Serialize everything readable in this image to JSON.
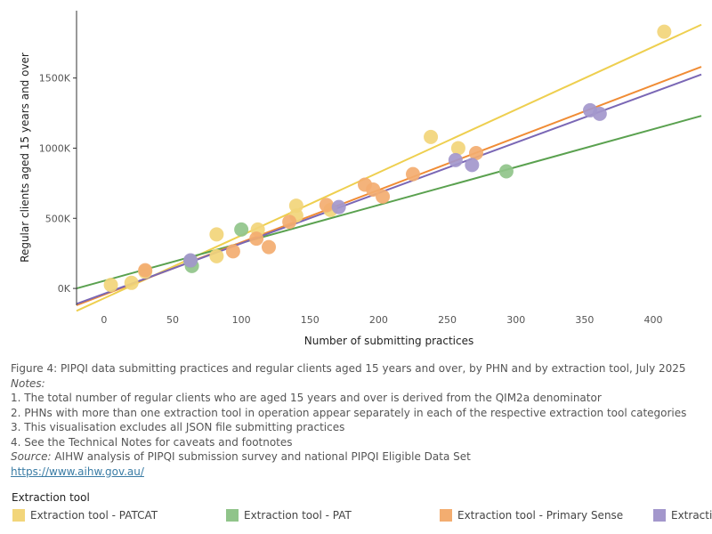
{
  "chart_data": {
    "type": "scatter",
    "xlabel": "Number of submitting practices",
    "ylabel": "Regular clients aged 15 years and over",
    "xlim": [
      -20,
      435
    ],
    "ylim": [
      -120000,
      1980000
    ],
    "x_ticks": [
      0,
      50,
      100,
      150,
      200,
      250,
      300,
      350,
      400
    ],
    "x_tick_labels": [
      "0",
      "50",
      "100",
      "150",
      "200",
      "250",
      "300",
      "350",
      "400"
    ],
    "y_ticks": [
      0,
      500000,
      1000000,
      1500000
    ],
    "y_tick_labels": [
      "0K",
      "500K",
      "1000K",
      "1500K"
    ],
    "grid": false,
    "legend_position": "bottom",
    "series": [
      {
        "name": "Extraction tool - PATCAT",
        "color": "#f2d57a",
        "line_color": "#eecf4f",
        "trend": [
          [
            -20,
            -160000
          ],
          [
            435,
            1880000
          ]
        ],
        "points": [
          [
            5,
            25000
          ],
          [
            20,
            40000
          ],
          [
            30,
            120000
          ],
          [
            82,
            230000
          ],
          [
            82,
            385000
          ],
          [
            112,
            420000
          ],
          [
            140,
            520000
          ],
          [
            140,
            590000
          ],
          [
            165,
            560000
          ],
          [
            238,
            1080000
          ],
          [
            258,
            1000000
          ],
          [
            408,
            1830000
          ]
        ]
      },
      {
        "name": "Extraction tool - PAT",
        "color": "#90c48a",
        "line_color": "#5aa14f",
        "trend": [
          [
            -20,
            0
          ],
          [
            435,
            1230000
          ]
        ],
        "points": [
          [
            63,
            195000
          ],
          [
            64,
            160000
          ],
          [
            100,
            420000
          ],
          [
            293,
            835000
          ]
        ]
      },
      {
        "name": "Extraction tool - Primary Sense",
        "color": "#f3ad70",
        "line_color": "#f08c35",
        "trend": [
          [
            -20,
            -120000
          ],
          [
            435,
            1580000
          ]
        ],
        "points": [
          [
            30,
            130000
          ],
          [
            94,
            265000
          ],
          [
            111,
            355000
          ],
          [
            120,
            295000
          ],
          [
            135,
            475000
          ],
          [
            162,
            595000
          ],
          [
            190,
            740000
          ],
          [
            196,
            705000
          ],
          [
            203,
            655000
          ],
          [
            225,
            815000
          ],
          [
            271,
            965000
          ]
        ]
      },
      {
        "name": "Extraction tool - Primary Sense",
        "color": "#a397cc",
        "line_color": "#7a67b5",
        "trend": [
          [
            -20,
            -110000
          ],
          [
            435,
            1525000
          ]
        ],
        "points": [
          [
            63,
            200000
          ],
          [
            171,
            580000
          ],
          [
            256,
            915000
          ],
          [
            268,
            880000
          ],
          [
            354,
            1270000
          ],
          [
            361,
            1245000
          ]
        ]
      }
    ]
  },
  "caption": {
    "figure_title": "Figure 4: PIPQI data submitting practices and regular clients aged 15 years and over, by PHN and by extraction tool, July 2025",
    "notes_label": "Notes:",
    "notes": [
      "1. The total number of regular clients who are aged 15 years and over is derived from the QIM2a denominator",
      "2. PHNs with more than one extraction tool in operation appear separately in each of the respective extraction tool categories",
      "3. This visualisation excludes all JSON file submitting practices",
      "4. See the Technical Notes for caveats and footnotes"
    ],
    "source_label": "Source:",
    "source_text": " AIHW analysis of PIPQI submission survey and national PIPQI Eligible Data Set",
    "link": "https://www.aihw.gov.au/"
  },
  "legend": {
    "title": "Extraction tool",
    "items": [
      {
        "label": "Extraction tool - PATCAT",
        "color": "#f2d57a"
      },
      {
        "label": "Extraction tool - PAT",
        "color": "#90c48a"
      },
      {
        "label": "Extraction tool - Primary Sense",
        "color": "#f3ad70"
      },
      {
        "label": "Extraction tool - Primary Sense",
        "color": "#a397cc"
      }
    ]
  }
}
